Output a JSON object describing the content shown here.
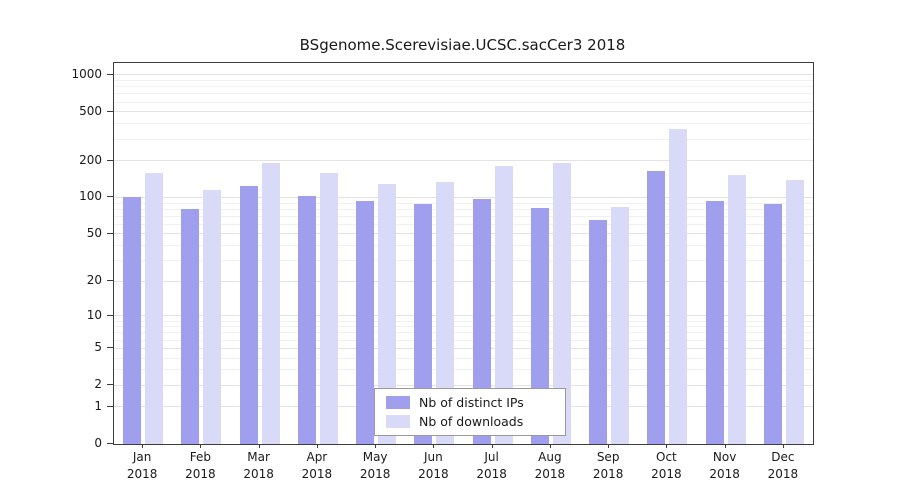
{
  "chart_data": {
    "type": "bar",
    "title": "BSgenome.Scerevisiae.UCSC.sacCer3 2018",
    "categories": [
      "Jan",
      "Feb",
      "Mar",
      "Apr",
      "May",
      "Jun",
      "Jul",
      "Aug",
      "Sep",
      "Oct",
      "Nov",
      "Dec"
    ],
    "year_label": "2018",
    "series": [
      {
        "name": "Nb of distinct IPs",
        "color": "#9f9fee",
        "values": [
          100,
          80,
          125,
          103,
          93,
          88,
          97,
          82,
          65,
          165,
          93,
          88
        ]
      },
      {
        "name": "Nb of downloads",
        "color": "#d9d9f8",
        "values": [
          160,
          115,
          190,
          160,
          128,
          135,
          180,
          192,
          83,
          365,
          152,
          140
        ]
      }
    ],
    "y_scale": "log1p",
    "y_ticks": [
      0,
      1,
      2,
      5,
      10,
      20,
      50,
      100,
      200,
      500,
      1000
    ],
    "ylim": [
      0,
      1100
    ],
    "xlabel": "",
    "ylabel": "",
    "grid": "horizontal",
    "legend_position": "bottom-center"
  }
}
